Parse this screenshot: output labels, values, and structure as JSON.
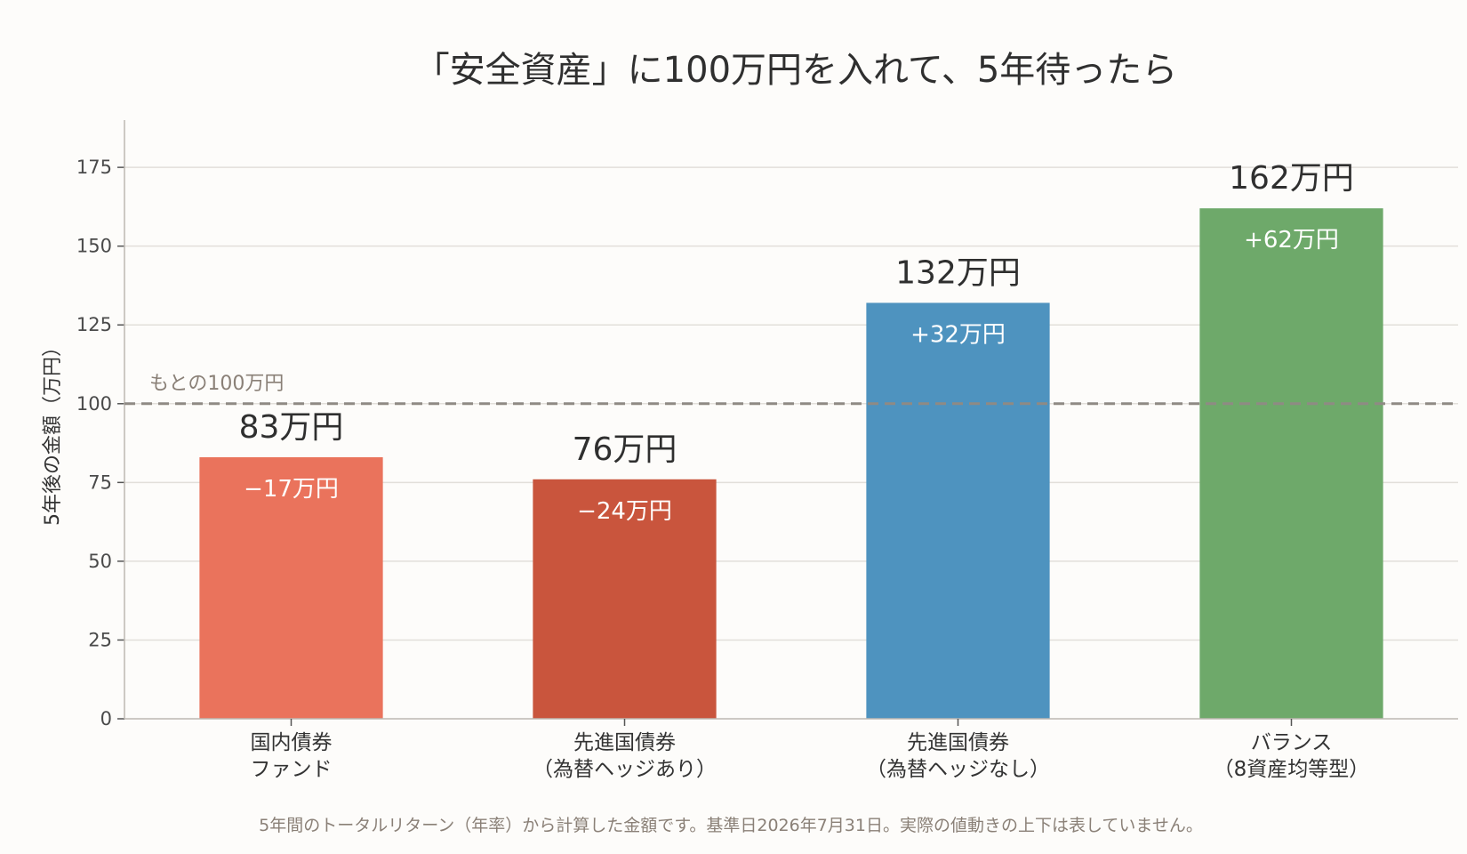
{
  "chart_data": {
    "type": "bar",
    "title": "「安全資産」に100万円を入れて、5年待ったら",
    "ylabel": "5年後の金額（万円）",
    "xlabel": "",
    "ylim": [
      0,
      190
    ],
    "yticks": [
      0,
      25,
      50,
      75,
      100,
      125,
      150,
      175
    ],
    "grid": true,
    "categories": [
      [
        "国内債券",
        "ファンド"
      ],
      [
        "先進国債券",
        "（為替ヘッジあり）"
      ],
      [
        "先進国債券",
        "（為替ヘッジなし）"
      ],
      [
        "バランス",
        "（8資産均等型）"
      ]
    ],
    "values": [
      83,
      76,
      132,
      162
    ],
    "value_labels": [
      "83万円",
      "76万円",
      "132万円",
      "162万円"
    ],
    "delta_labels": [
      "−17万円",
      "−24万円",
      "+32万円",
      "+62万円"
    ],
    "colors": [
      "#ea735c",
      "#c9553d",
      "#4e93bf",
      "#6ea96a"
    ],
    "reference_line": {
      "value": 100,
      "label": "もとの100万円",
      "color": "#8f8a84"
    },
    "footnote": "5年間のトータルリターン（年率）から計算した金額です。基準日2026年7月31日。実際の値動きの上下は表していません。"
  }
}
